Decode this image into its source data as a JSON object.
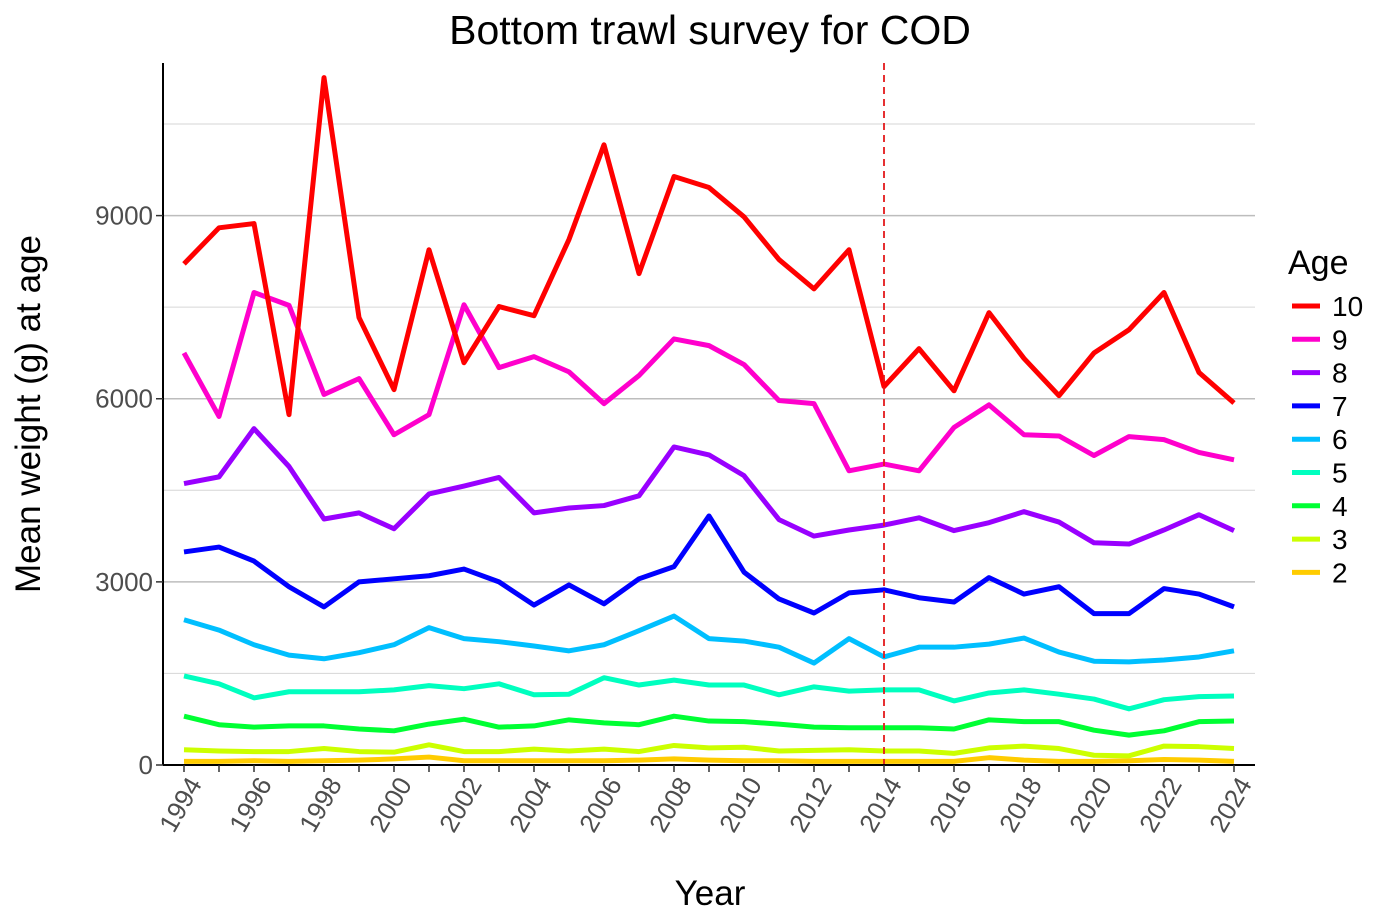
{
  "chart_data": {
    "type": "line",
    "title": "Bottom trawl survey for COD",
    "xlabel": "Year",
    "ylabel": "Mean weight (g) at age",
    "xlim": [
      1993.4,
      2024.6
    ],
    "ylim": [
      0,
      11500
    ],
    "x_ticks": [
      1994,
      1996,
      1998,
      2000,
      2002,
      2004,
      2006,
      2008,
      2010,
      2012,
      2014,
      2016,
      2018,
      2020,
      2022,
      2024
    ],
    "y_ticks": [
      0,
      3000,
      6000,
      9000
    ],
    "y_minor_grid": [
      1500,
      4500,
      7500,
      10500
    ],
    "grid": true,
    "vline": {
      "x": 2014,
      "color": "#e41a1c",
      "style": "dashed"
    },
    "legend": {
      "title": "Age",
      "placement": "right"
    },
    "x": [
      1994,
      1995,
      1996,
      1997,
      1998,
      1999,
      2000,
      2001,
      2002,
      2003,
      2004,
      2005,
      2006,
      2007,
      2008,
      2009,
      2010,
      2011,
      2012,
      2013,
      2014,
      2015,
      2016,
      2017,
      2018,
      2019,
      2020,
      2021,
      2022,
      2023,
      2024
    ],
    "series": [
      {
        "name": "10",
        "color": "#ff0000",
        "values": [
          8210,
          8800,
          8870,
          5740,
          11260,
          7330,
          6150,
          8440,
          6590,
          7510,
          7360,
          8610,
          10160,
          8050,
          9640,
          9460,
          8980,
          8280,
          7800,
          8440,
          6200,
          6820,
          6130,
          7410,
          6660,
          6050,
          6750,
          7130,
          7740,
          6430,
          5930
        ]
      },
      {
        "name": "9",
        "color": "#ff00cc",
        "values": [
          6750,
          5710,
          7740,
          7530,
          6070,
          6330,
          5410,
          5740,
          7540,
          6510,
          6690,
          6440,
          5920,
          6380,
          6980,
          6870,
          6560,
          5970,
          5920,
          4820,
          4930,
          4820,
          5530,
          5900,
          5410,
          5390,
          5070,
          5380,
          5330,
          5120,
          5000
        ]
      },
      {
        "name": "8",
        "color": "#9900ff",
        "values": [
          4610,
          4720,
          5510,
          4890,
          4030,
          4130,
          3870,
          4440,
          4570,
          4710,
          4130,
          4210,
          4250,
          4410,
          5210,
          5080,
          4740,
          4020,
          3750,
          3850,
          3930,
          4050,
          3840,
          3970,
          4150,
          3980,
          3640,
          3620,
          3850,
          4100,
          3840
        ]
      },
      {
        "name": "7",
        "color": "#0000ff",
        "values": [
          3490,
          3570,
          3340,
          2920,
          2590,
          3000,
          3050,
          3100,
          3210,
          3000,
          2620,
          2950,
          2640,
          3050,
          3250,
          4080,
          3160,
          2720,
          2490,
          2820,
          2870,
          2740,
          2670,
          3070,
          2800,
          2920,
          2480,
          2480,
          2890,
          2800,
          2590
        ]
      },
      {
        "name": "6",
        "color": "#00bfff",
        "values": [
          2380,
          2210,
          1970,
          1800,
          1740,
          1840,
          1970,
          2250,
          2070,
          2020,
          1950,
          1870,
          1970,
          2200,
          2440,
          2070,
          2030,
          1930,
          1670,
          2070,
          1770,
          1930,
          1930,
          1980,
          2080,
          1850,
          1700,
          1690,
          1720,
          1770,
          1870
        ]
      },
      {
        "name": "5",
        "color": "#00ffbf",
        "values": [
          1460,
          1330,
          1100,
          1200,
          1200,
          1200,
          1230,
          1300,
          1250,
          1330,
          1150,
          1160,
          1430,
          1310,
          1390,
          1310,
          1310,
          1150,
          1280,
          1210,
          1230,
          1230,
          1050,
          1180,
          1230,
          1160,
          1080,
          920,
          1070,
          1120,
          1130
        ]
      },
      {
        "name": "4",
        "color": "#00ff33",
        "values": [
          800,
          660,
          620,
          640,
          640,
          590,
          560,
          670,
          750,
          620,
          640,
          740,
          690,
          660,
          800,
          720,
          710,
          670,
          620,
          610,
          610,
          610,
          590,
          740,
          710,
          710,
          570,
          490,
          560,
          710,
          720
        ]
      },
      {
        "name": "3",
        "color": "#ccff00",
        "values": [
          250,
          230,
          220,
          220,
          270,
          220,
          210,
          330,
          220,
          220,
          260,
          230,
          260,
          220,
          320,
          280,
          290,
          230,
          240,
          250,
          230,
          230,
          190,
          280,
          310,
          270,
          160,
          150,
          310,
          300,
          270
        ]
      },
      {
        "name": "2",
        "color": "#ffcc00",
        "values": [
          60,
          60,
          70,
          60,
          70,
          80,
          100,
          130,
          70,
          70,
          70,
          70,
          70,
          80,
          100,
          80,
          70,
          70,
          60,
          60,
          60,
          60,
          60,
          120,
          80,
          60,
          60,
          70,
          90,
          80,
          60
        ]
      }
    ]
  }
}
